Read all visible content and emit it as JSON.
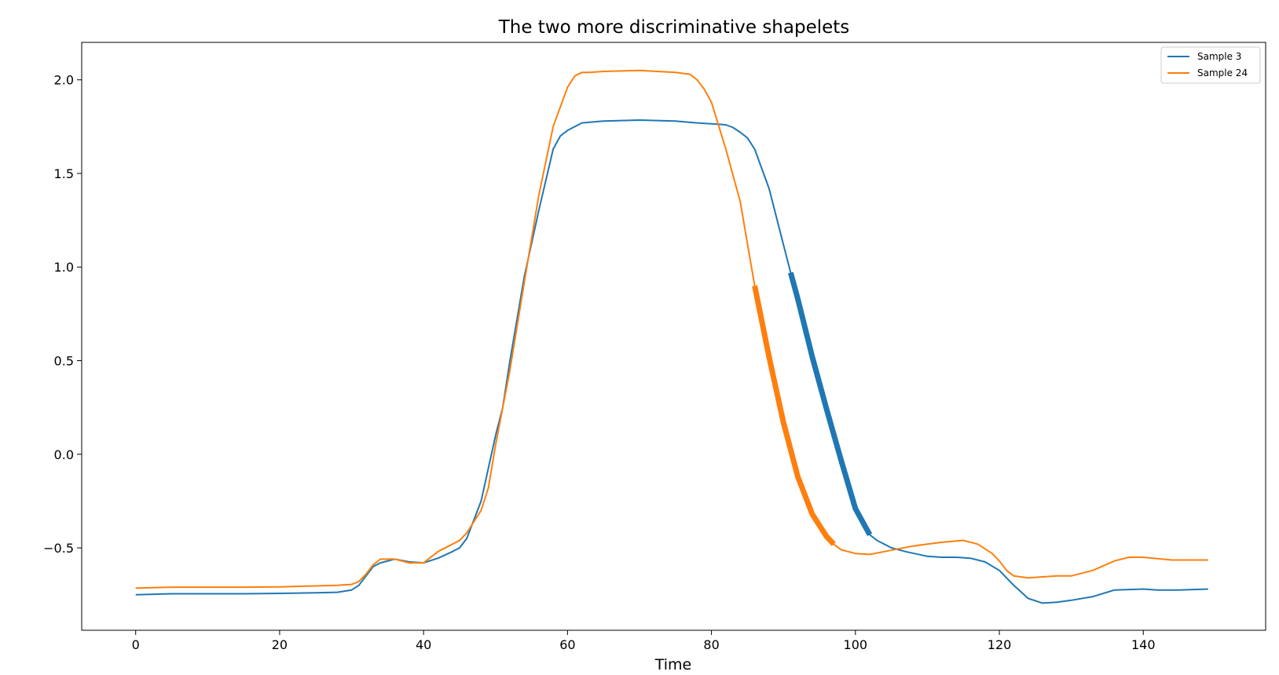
{
  "chart_data": {
    "type": "line",
    "title": "The two more discriminative shapelets",
    "xlabel": "Time",
    "ylabel": "",
    "xlim": [
      -7.5,
      157
    ],
    "ylim": [
      -0.94,
      2.2
    ],
    "xticks": [
      0,
      20,
      40,
      60,
      80,
      100,
      120,
      140
    ],
    "yticks": [
      -0.5,
      0.0,
      0.5,
      1.0,
      1.5,
      2.0
    ],
    "ytick_labels": [
      "−0.5",
      "0.0",
      "0.5",
      "1.0",
      "1.5",
      "2.0"
    ],
    "grid": false,
    "legend": "top-right",
    "series": [
      {
        "name": "Sample 3",
        "color": "#1f77b4",
        "x": [
          0,
          5,
          10,
          15,
          20,
          25,
          28,
          30,
          31,
          32,
          33,
          34,
          36,
          38,
          40,
          42,
          44,
          45,
          46,
          48,
          50,
          51,
          52,
          54,
          56,
          58,
          59,
          60,
          62,
          65,
          70,
          75,
          78,
          80,
          82,
          83,
          84,
          85,
          86,
          88,
          90,
          91,
          92,
          94,
          96,
          98,
          100,
          102,
          103,
          105,
          107,
          110,
          112,
          114,
          116,
          118,
          120,
          122,
          124,
          126,
          128,
          130,
          133,
          136,
          140,
          142,
          145,
          149
        ],
        "y": [
          -0.75,
          -0.745,
          -0.745,
          -0.745,
          -0.743,
          -0.74,
          -0.737,
          -0.725,
          -0.7,
          -0.65,
          -0.6,
          -0.58,
          -0.56,
          -0.575,
          -0.58,
          -0.555,
          -0.52,
          -0.5,
          -0.45,
          -0.25,
          0.1,
          0.25,
          0.5,
          0.95,
          1.3,
          1.63,
          1.7,
          1.73,
          1.77,
          1.78,
          1.785,
          1.78,
          1.77,
          1.765,
          1.76,
          1.745,
          1.72,
          1.69,
          1.63,
          1.42,
          1.12,
          0.97,
          0.83,
          0.52,
          0.24,
          -0.03,
          -0.29,
          -0.43,
          -0.46,
          -0.5,
          -0.52,
          -0.545,
          -0.55,
          -0.55,
          -0.555,
          -0.575,
          -0.62,
          -0.7,
          -0.77,
          -0.795,
          -0.79,
          -0.78,
          -0.76,
          -0.725,
          -0.72,
          -0.725,
          -0.725,
          -0.72
        ]
      },
      {
        "name": "Sample 24",
        "color": "#ff7f0e",
        "x": [
          0,
          5,
          10,
          15,
          20,
          25,
          28,
          30,
          31,
          32,
          33,
          34,
          36,
          38,
          40,
          42,
          44,
          45,
          46,
          48,
          49,
          50,
          52,
          54,
          56,
          58,
          60,
          61,
          62,
          63,
          65,
          70,
          75,
          77,
          78,
          79,
          80,
          82,
          84,
          86,
          88,
          90,
          92,
          94,
          96,
          97,
          98,
          100,
          102,
          104,
          106,
          108,
          110,
          112,
          115,
          117,
          119,
          120,
          121,
          122,
          124,
          126,
          128,
          130,
          133,
          136,
          138,
          140,
          144,
          149
        ],
        "y": [
          -0.715,
          -0.71,
          -0.71,
          -0.71,
          -0.708,
          -0.703,
          -0.7,
          -0.695,
          -0.68,
          -0.64,
          -0.59,
          -0.56,
          -0.56,
          -0.58,
          -0.58,
          -0.52,
          -0.48,
          -0.46,
          -0.42,
          -0.3,
          -0.18,
          0.05,
          0.45,
          0.92,
          1.38,
          1.75,
          1.96,
          2.02,
          2.04,
          2.04,
          2.045,
          2.05,
          2.04,
          2.03,
          2.0,
          1.95,
          1.88,
          1.63,
          1.35,
          0.9,
          0.52,
          0.17,
          -0.12,
          -0.32,
          -0.44,
          -0.48,
          -0.51,
          -0.53,
          -0.535,
          -0.52,
          -0.505,
          -0.49,
          -0.48,
          -0.47,
          -0.46,
          -0.48,
          -0.53,
          -0.57,
          -0.62,
          -0.65,
          -0.66,
          -0.655,
          -0.65,
          -0.65,
          -0.62,
          -0.57,
          -0.55,
          -0.55,
          -0.565,
          -0.565
        ]
      }
    ],
    "shapelets": [
      {
        "series": "Sample 3",
        "color": "#1f77b4",
        "x_start": 91,
        "x_end": 102
      },
      {
        "series": "Sample 24",
        "color": "#ff7f0e",
        "x_start": 86,
        "x_end": 97
      }
    ]
  }
}
